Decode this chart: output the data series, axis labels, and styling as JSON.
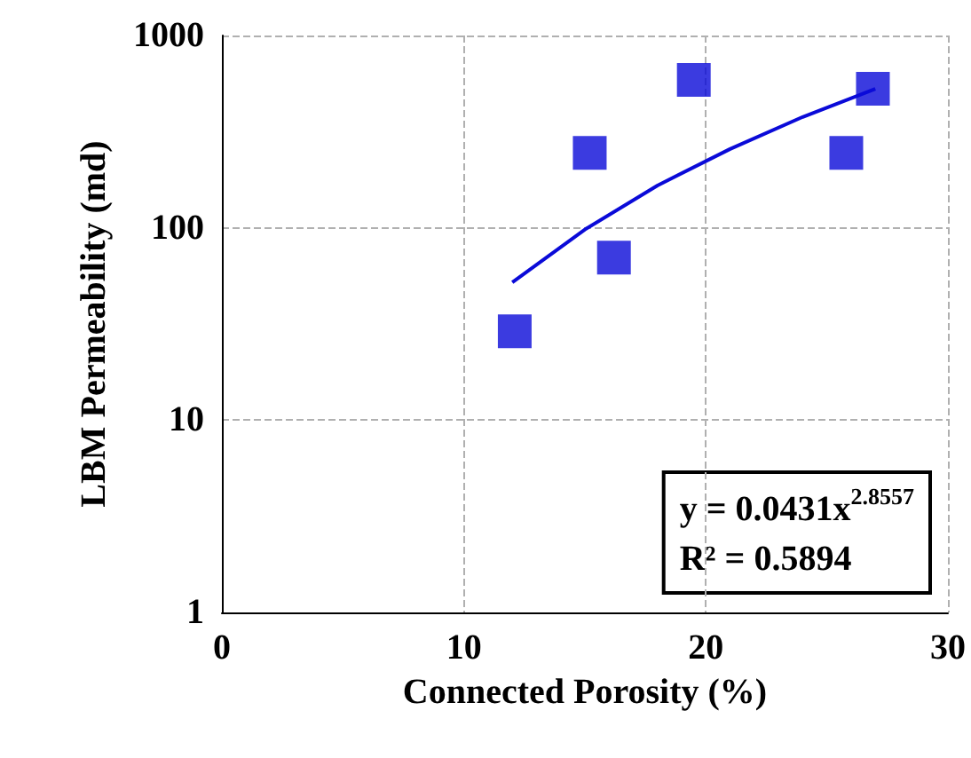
{
  "chart_data": {
    "type": "scatter",
    "xlabel": "Connected Porosity (%)",
    "ylabel": "LBM Permeability (md)",
    "marker": "square",
    "log": "y",
    "grid": true,
    "xlim": [
      0,
      30
    ],
    "xticks": [
      0,
      10,
      20,
      30
    ],
    "ylim": [
      1,
      1000
    ],
    "yticks": [
      1,
      10,
      100,
      1000
    ],
    "series": [
      {
        "color": "#0a0ad8",
        "x": [
          12.1,
          15.2,
          16.2,
          19.5,
          25.8,
          26.9
        ],
        "values": [
          29,
          245,
          70,
          588,
          245,
          529
        ]
      },
      {
        "type": "line",
        "marker": "none",
        "color": "#0a0ad8",
        "x": [
          12,
          15,
          18,
          21,
          24,
          27
        ],
        "values": [
          52,
          98,
          166,
          257,
          377,
          528
        ]
      }
    ],
    "annotations": [
      "y = 0.0431x$^{2.8557}$",
      "R² = 0.5894"
    ]
  }
}
